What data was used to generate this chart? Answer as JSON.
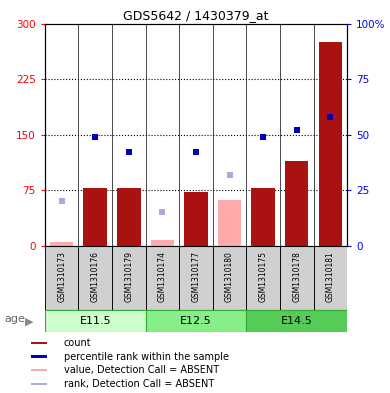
{
  "title": "GDS5642 / 1430379_at",
  "samples": [
    "GSM1310173",
    "GSM1310176",
    "GSM1310179",
    "GSM1310174",
    "GSM1310177",
    "GSM1310180",
    "GSM1310175",
    "GSM1310178",
    "GSM1310181"
  ],
  "groups": [
    {
      "label": "E11.5",
      "indices": [
        0,
        1,
        2
      ]
    },
    {
      "label": "E12.5",
      "indices": [
        3,
        4,
        5
      ]
    },
    {
      "label": "E14.5",
      "indices": [
        6,
        7,
        8
      ]
    }
  ],
  "group_colors": [
    "#ccffcc",
    "#88ee88",
    "#55cc55"
  ],
  "count_values": [
    5,
    78,
    78,
    8,
    72,
    0,
    78,
    115,
    275
  ],
  "count_absent": [
    true,
    false,
    false,
    true,
    false,
    true,
    false,
    false,
    false
  ],
  "absent_bar_heights": [
    5,
    0,
    0,
    8,
    0,
    62,
    0,
    0,
    0
  ],
  "rank_percent": [
    20,
    49,
    42,
    0,
    42,
    0,
    49,
    52,
    58
  ],
  "rank_absent": [
    true,
    false,
    false,
    true,
    false,
    true,
    false,
    false,
    false
  ],
  "absent_rank_percent": [
    20,
    0,
    0,
    15,
    0,
    32,
    0,
    0,
    0
  ],
  "left_ylim": [
    0,
    300
  ],
  "right_ylim": [
    0,
    100
  ],
  "left_yticks": [
    0,
    75,
    150,
    225,
    300
  ],
  "right_yticks": [
    0,
    25,
    50,
    75,
    100
  ],
  "right_yticklabels": [
    "0",
    "25",
    "50",
    "75",
    "100%"
  ],
  "bar_color": "#aa1111",
  "absent_bar_color": "#ffaaaa",
  "rank_color": "#0000bb",
  "absent_rank_color": "#aaaadd",
  "age_label": "age"
}
